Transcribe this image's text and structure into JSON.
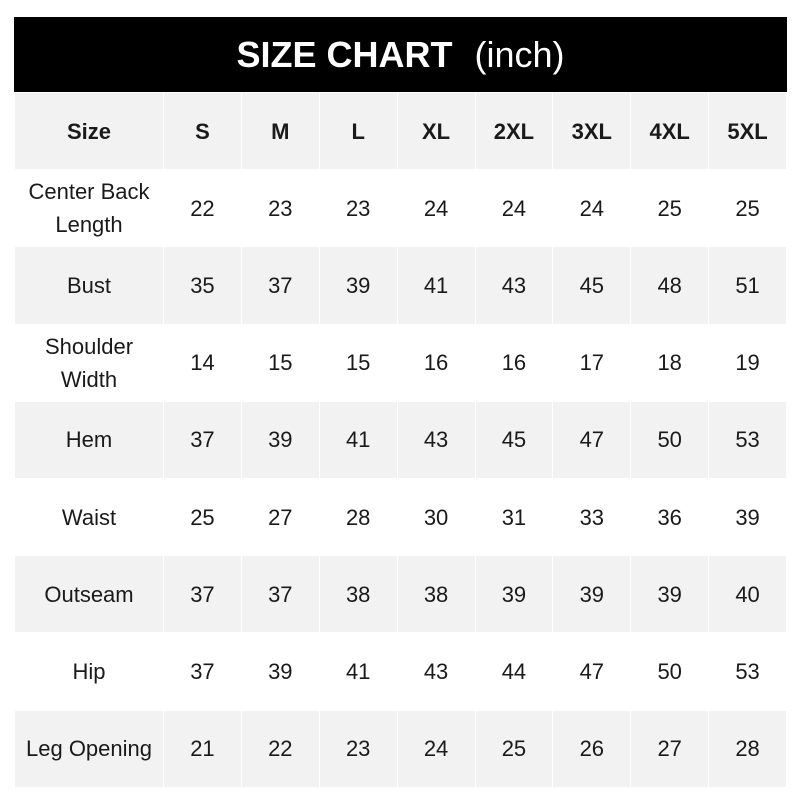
{
  "title": {
    "main": "SIZE CHART",
    "unit": "(inch)"
  },
  "colors": {
    "header_bg": "#000000",
    "stripe": "#f2f2f2",
    "text": "#1a1a1a"
  },
  "table": {
    "header": [
      "Size",
      "S",
      "M",
      "L",
      "XL",
      "2XL",
      "3XL",
      "4XL",
      "5XL"
    ],
    "rows": [
      {
        "label": "Center Back Length",
        "values": [
          "22",
          "23",
          "23",
          "24",
          "24",
          "24",
          "25",
          "25"
        ]
      },
      {
        "label": "Bust",
        "values": [
          "35",
          "37",
          "39",
          "41",
          "43",
          "45",
          "48",
          "51"
        ]
      },
      {
        "label": "Shoulder Width",
        "values": [
          "14",
          "15",
          "15",
          "16",
          "16",
          "17",
          "18",
          "19"
        ]
      },
      {
        "label": "Hem",
        "values": [
          "37",
          "39",
          "41",
          "43",
          "45",
          "47",
          "50",
          "53"
        ]
      },
      {
        "label": "Waist",
        "values": [
          "25",
          "27",
          "28",
          "30",
          "31",
          "33",
          "36",
          "39"
        ]
      },
      {
        "label": "Outseam",
        "values": [
          "37",
          "37",
          "38",
          "38",
          "39",
          "39",
          "39",
          "40"
        ]
      },
      {
        "label": "Hip",
        "values": [
          "37",
          "39",
          "41",
          "43",
          "44",
          "47",
          "50",
          "53"
        ]
      },
      {
        "label": "Leg Opening",
        "values": [
          "21",
          "22",
          "23",
          "24",
          "25",
          "26",
          "27",
          "28"
        ]
      }
    ]
  }
}
